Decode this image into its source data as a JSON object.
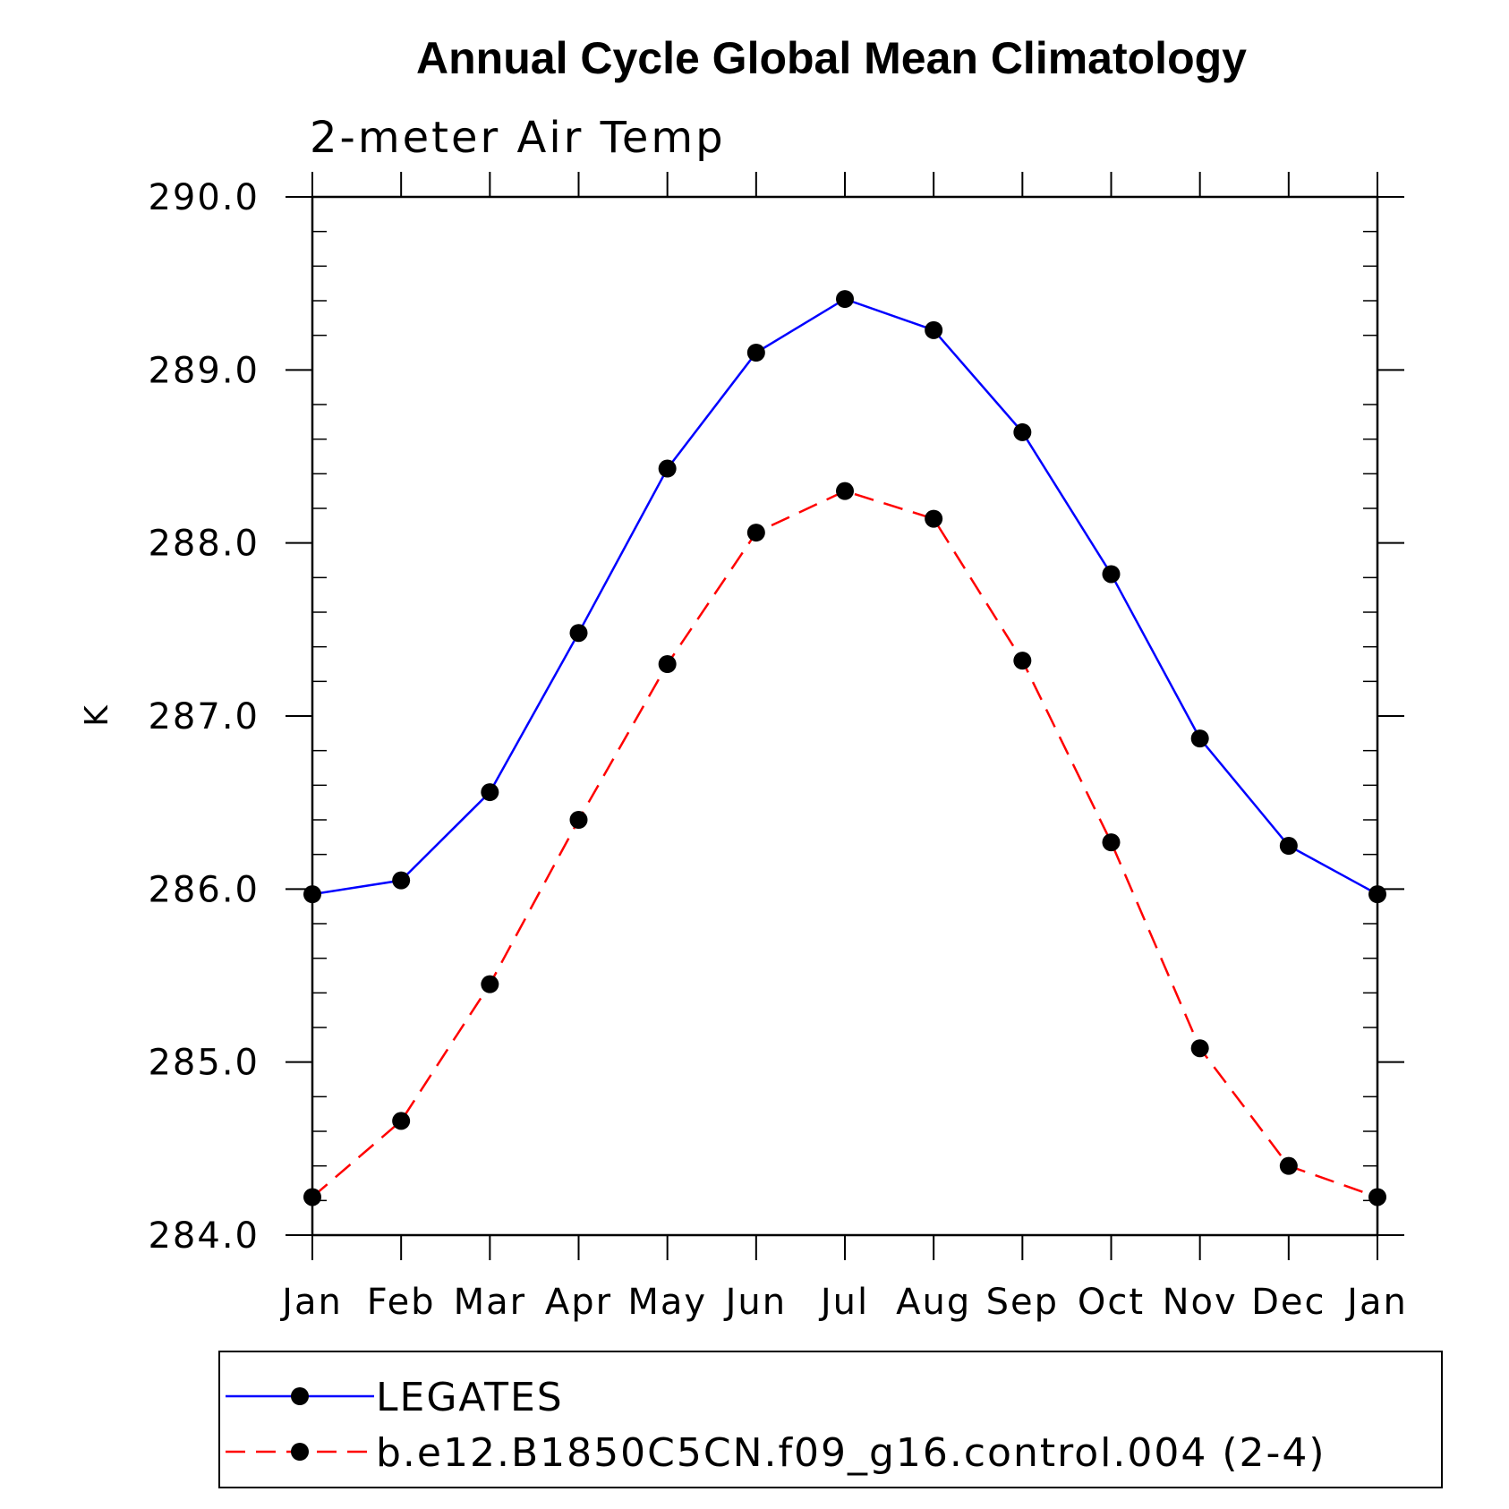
{
  "chart_data": {
    "type": "line",
    "title": "Annual Cycle Global Mean Climatology",
    "subtitle": "2-meter Air Temp",
    "ylabel": "K",
    "xlabel": "",
    "categories": [
      "Jan",
      "Feb",
      "Mar",
      "Apr",
      "May",
      "Jun",
      "Jul",
      "Aug",
      "Sep",
      "Oct",
      "Nov",
      "Dec",
      "Jan"
    ],
    "ylim": [
      284.0,
      290.0
    ],
    "yticks": [
      "284.0",
      "285.0",
      "286.0",
      "287.0",
      "288.0",
      "289.0",
      "290.0"
    ],
    "grid": false,
    "legend_position": "bottom",
    "series": [
      {
        "name": "LEGATES",
        "color": "#0000ff",
        "dash": "solid",
        "marker": "filled-circle",
        "values": [
          285.97,
          286.05,
          286.56,
          287.48,
          288.43,
          289.1,
          289.41,
          289.23,
          288.64,
          287.82,
          286.87,
          286.25,
          285.97
        ]
      },
      {
        "name": "b.e12.B1850C5CN.f09_g16.control.004 (2-4)",
        "color": "#ff0000",
        "dash": "dashed",
        "marker": "filled-circle",
        "values": [
          284.22,
          284.66,
          285.45,
          286.4,
          287.3,
          288.06,
          288.3,
          288.14,
          287.32,
          286.27,
          285.08,
          284.4,
          284.22
        ]
      }
    ]
  }
}
